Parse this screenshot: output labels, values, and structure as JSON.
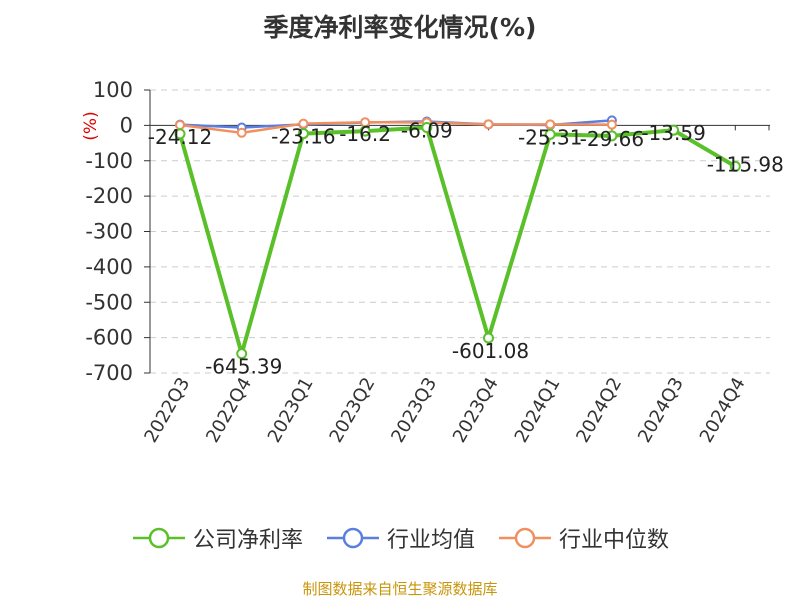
{
  "title": "季度净利率变化情况(%)",
  "source_note": "制图数据来自恒生聚源数据库",
  "chart_data": {
    "type": "line",
    "title": "季度净利率变化情况(%)",
    "ylabel": "(%)",
    "xlabel": "",
    "ylim": [
      -700,
      100
    ],
    "yticks": [
      100,
      0,
      -100,
      -200,
      -300,
      -400,
      -500,
      -600,
      -700
    ],
    "grid": true,
    "legend_position": "bottom",
    "categories": [
      "2022Q3",
      "2022Q4",
      "2023Q1",
      "2023Q2",
      "2023Q3",
      "2023Q4",
      "2024Q1",
      "2024Q2",
      "2024Q3",
      "2024Q4"
    ],
    "series": [
      {
        "name": "公司净利率",
        "color": "#5ac02a",
        "values": [
          -24.12,
          -645.39,
          -23.16,
          -16.2,
          -6.09,
          -601.08,
          -25.31,
          -29.66,
          -13.59,
          -115.98
        ],
        "labels": [
          "-24.12",
          "-645.39",
          "-23.16",
          "-16.2",
          "-6.09",
          "-601.08",
          "-25.31",
          "-29.66",
          "-13.59",
          "-115.98"
        ]
      },
      {
        "name": "行业均值",
        "color": "#5b7fe0",
        "values": [
          2,
          -6,
          3,
          8,
          11,
          3,
          1,
          14,
          null,
          null
        ]
      },
      {
        "name": "行业中位数",
        "color": "#f09060",
        "values": [
          1,
          -21,
          5,
          9,
          8,
          3,
          3,
          2,
          null,
          null
        ]
      }
    ]
  }
}
